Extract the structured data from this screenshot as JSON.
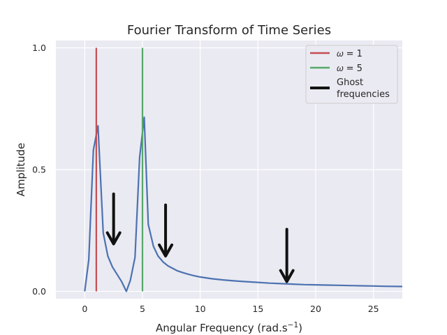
{
  "chart_data": {
    "type": "line",
    "title": "Fourier Transform of Time Series",
    "xlabel": "Angular Frequency (rad.s",
    "xlabel_sup": "−1",
    "xlabel_close": ")",
    "ylabel": "Amplitude",
    "xlim": [
      -2.5,
      27.5
    ],
    "ylim": [
      -0.03,
      1.03
    ],
    "x_ticks": [
      0,
      5,
      10,
      15,
      20,
      25
    ],
    "x_tick_labels": [
      "0",
      "5",
      "10",
      "15",
      "20",
      "25"
    ],
    "y_ticks": [
      0.0,
      0.5,
      1.0
    ],
    "y_tick_labels": [
      "0.0",
      "0.5",
      "1.0"
    ],
    "grid": true,
    "legend_position": "top-right",
    "series": [
      {
        "type": "line",
        "color": "#4c72b0",
        "x": [
          0.0,
          0.35,
          0.75,
          1.15,
          1.6,
          2.0,
          2.4,
          2.8,
          3.2,
          3.6,
          3.95,
          4.35,
          4.75,
          5.15,
          5.5,
          5.95,
          6.35,
          6.8,
          7.2,
          7.6,
          8.0,
          8.5,
          9.0,
          9.5,
          10,
          11,
          12,
          13,
          14,
          15,
          16,
          17,
          18,
          19,
          20,
          21,
          22,
          23,
          24,
          25,
          26,
          27.5
        ],
        "y": [
          0.0,
          0.13,
          0.58,
          0.68,
          0.24,
          0.145,
          0.1,
          0.07,
          0.04,
          0.0,
          0.045,
          0.14,
          0.55,
          0.715,
          0.275,
          0.185,
          0.145,
          0.12,
          0.105,
          0.095,
          0.085,
          0.077,
          0.07,
          0.064,
          0.059,
          0.052,
          0.047,
          0.043,
          0.04,
          0.037,
          0.034,
          0.032,
          0.03,
          0.028,
          0.027,
          0.026,
          0.025,
          0.024,
          0.023,
          0.022,
          0.021,
          0.02
        ]
      },
      {
        "type": "vline",
        "name": "ω = 1",
        "color": "#c44e52",
        "x": 1,
        "y_range": [
          0,
          1
        ]
      },
      {
        "type": "vline",
        "name": "ω = 5",
        "color": "#55a868",
        "x": 5,
        "y_range": [
          0,
          1
        ]
      },
      {
        "type": "arrows",
        "name": "Ghost frequencies",
        "color": "#111111",
        "arrows": [
          {
            "x": 2.5,
            "y_start": 0.4,
            "y_end": 0.195
          },
          {
            "x": 7.0,
            "y_start": 0.355,
            "y_end": 0.145
          },
          {
            "x": 17.5,
            "y_start": 0.255,
            "y_end": 0.04
          }
        ]
      }
    ],
    "legend": [
      {
        "label": "𝜔 = 1",
        "color": "#c44e52"
      },
      {
        "label": "𝜔 = 5",
        "color": "#55a868"
      },
      {
        "label": [
          "Ghost",
          "frequencies"
        ],
        "color": "#111111"
      }
    ]
  }
}
